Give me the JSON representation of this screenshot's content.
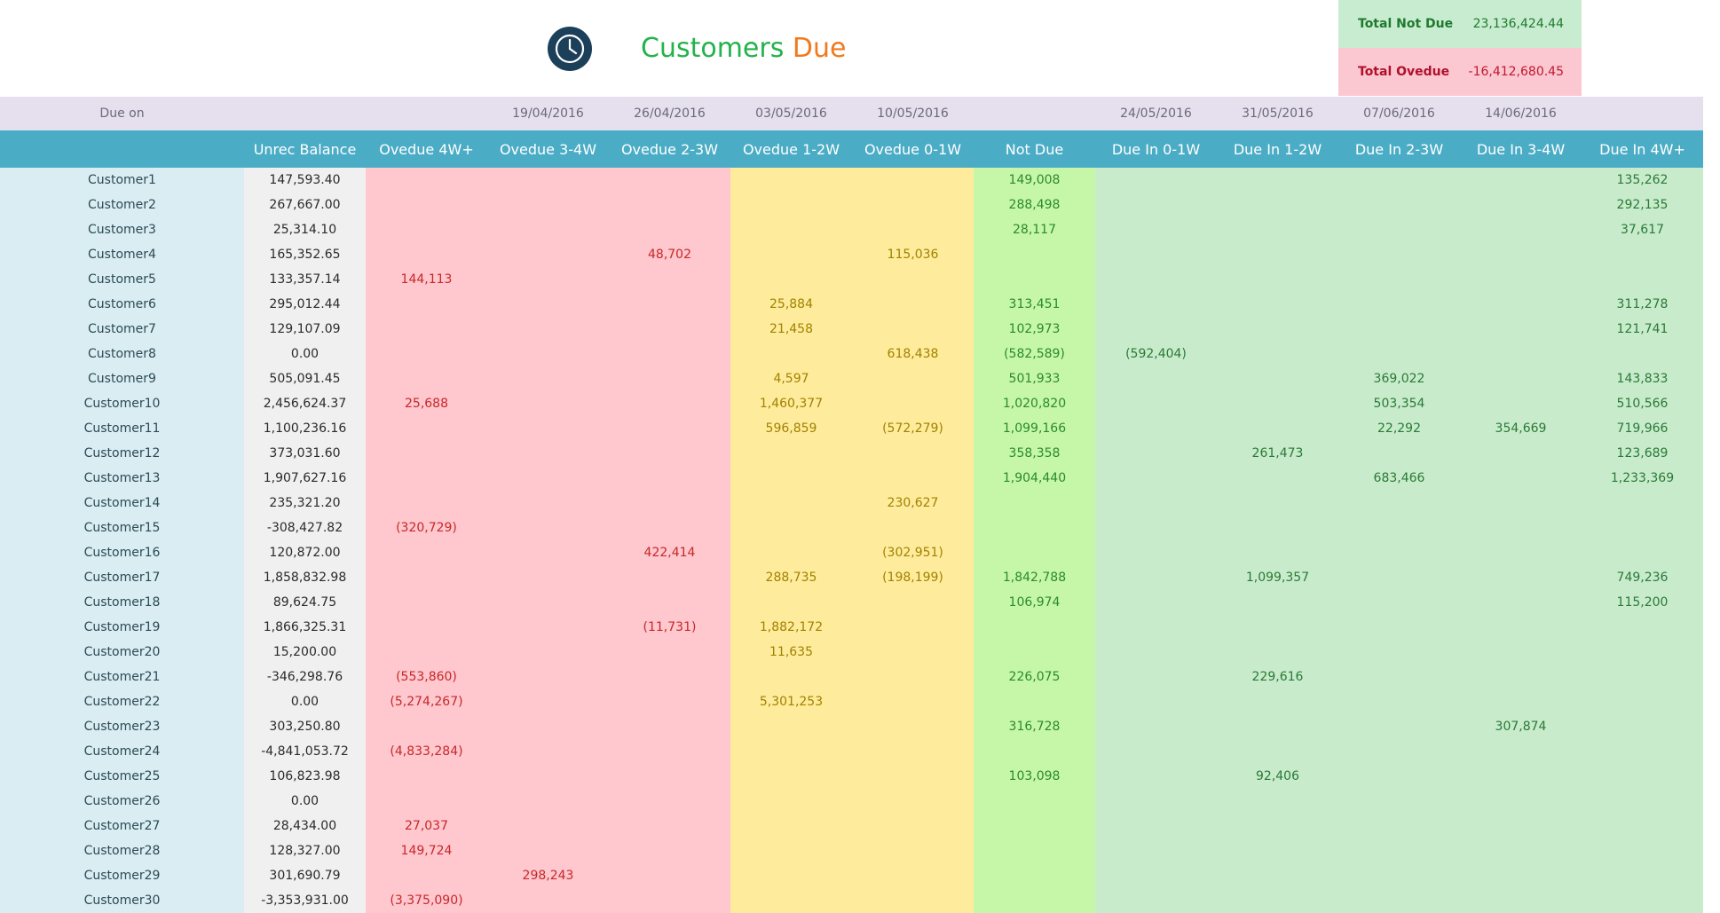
{
  "header": {
    "title_part1": "Customers",
    "title_part2": "Due",
    "icon": "clock-icon"
  },
  "totals": {
    "not_due_label": "Total Not Due",
    "not_due_value": "23,136,424.44",
    "overdue_label": "Total Ovedue",
    "overdue_value": "-16,412,680.45"
  },
  "colors": {
    "header_band": "#4bacc6",
    "overdue_pink": "#ffc7ce",
    "overdue_yellow": "#ffeb9c",
    "not_due_green": "#c6f7a8",
    "due_in_green": "#c8ebcc",
    "title_green": "#23b24b",
    "title_orange": "#f07a1e"
  },
  "table": {
    "dates": [
      "Due on",
      "",
      "",
      "19/04/2016",
      "26/04/2016",
      "03/05/2016",
      "10/05/2016",
      "",
      "24/05/2016",
      "31/05/2016",
      "07/06/2016",
      "14/06/2016",
      ""
    ],
    "columns": [
      "",
      "Unrec Balance",
      "Ovedue 4W+",
      "Ovedue 3-4W",
      "Ovedue 2-3W",
      "Ovedue 1-2W",
      "Ovedue 0-1W",
      "Not Due",
      "Due In 0-1W",
      "Due In 1-2W",
      "Due In 2-3W",
      "Due In 3-4W",
      "Due In 4W+"
    ],
    "rows": [
      [
        "Customer1",
        "147,593.40",
        "",
        "",
        "",
        "",
        "",
        "149,008",
        "",
        "",
        "",
        "",
        "135,262"
      ],
      [
        "Customer2",
        "267,667.00",
        "",
        "",
        "",
        "",
        "",
        "288,498",
        "",
        "",
        "",
        "",
        "292,135"
      ],
      [
        "Customer3",
        "25,314.10",
        "",
        "",
        "",
        "",
        "",
        "28,117",
        "",
        "",
        "",
        "",
        "37,617"
      ],
      [
        "Customer4",
        "165,352.65",
        "",
        "",
        "48,702",
        "",
        "115,036",
        "",
        "",
        "",
        "",
        "",
        ""
      ],
      [
        "Customer5",
        "133,357.14",
        "144,113",
        "",
        "",
        "",
        "",
        "",
        "",
        "",
        "",
        "",
        ""
      ],
      [
        "Customer6",
        "295,012.44",
        "",
        "",
        "",
        "25,884",
        "",
        "313,451",
        "",
        "",
        "",
        "",
        "311,278"
      ],
      [
        "Customer7",
        "129,107.09",
        "",
        "",
        "",
        "21,458",
        "",
        "102,973",
        "",
        "",
        "",
        "",
        "121,741"
      ],
      [
        "Customer8",
        "0.00",
        "",
        "",
        "",
        "",
        "618,438",
        "(582,589)",
        "(592,404)",
        "",
        "",
        "",
        ""
      ],
      [
        "Customer9",
        "505,091.45",
        "",
        "",
        "",
        "4,597",
        "",
        "501,933",
        "",
        "",
        "369,022",
        "",
        "143,833"
      ],
      [
        "Customer10",
        "2,456,624.37",
        "25,688",
        "",
        "",
        "1,460,377",
        "",
        "1,020,820",
        "",
        "",
        "503,354",
        "",
        "510,566"
      ],
      [
        "Customer11",
        "1,100,236.16",
        "",
        "",
        "",
        "596,859",
        "(572,279)",
        "1,099,166",
        "",
        "",
        "22,292",
        "354,669",
        "719,966"
      ],
      [
        "Customer12",
        "373,031.60",
        "",
        "",
        "",
        "",
        "",
        "358,358",
        "",
        "261,473",
        "",
        "",
        "123,689"
      ],
      [
        "Customer13",
        "1,907,627.16",
        "",
        "",
        "",
        "",
        "",
        "1,904,440",
        "",
        "",
        "683,466",
        "",
        "1,233,369"
      ],
      [
        "Customer14",
        "235,321.20",
        "",
        "",
        "",
        "",
        "230,627",
        "",
        "",
        "",
        "",
        "",
        ""
      ],
      [
        "Customer15",
        "-308,427.82",
        "(320,729)",
        "",
        "",
        "",
        "",
        "",
        "",
        "",
        "",
        "",
        ""
      ],
      [
        "Customer16",
        "120,872.00",
        "",
        "",
        "422,414",
        "",
        "(302,951)",
        "",
        "",
        "",
        "",
        "",
        ""
      ],
      [
        "Customer17",
        "1,858,832.98",
        "",
        "",
        "",
        "288,735",
        "(198,199)",
        "1,842,788",
        "",
        "1,099,357",
        "",
        "",
        "749,236"
      ],
      [
        "Customer18",
        "89,624.75",
        "",
        "",
        "",
        "",
        "",
        "106,974",
        "",
        "",
        "",
        "",
        "115,200"
      ],
      [
        "Customer19",
        "1,866,325.31",
        "",
        "",
        "(11,731)",
        "1,882,172",
        "",
        "",
        "",
        "",
        "",
        "",
        ""
      ],
      [
        "Customer20",
        "15,200.00",
        "",
        "",
        "",
        "11,635",
        "",
        "",
        "",
        "",
        "",
        "",
        ""
      ],
      [
        "Customer21",
        "-346,298.76",
        "(553,860)",
        "",
        "",
        "",
        "",
        "226,075",
        "",
        "229,616",
        "",
        "",
        ""
      ],
      [
        "Customer22",
        "0.00",
        "(5,274,267)",
        "",
        "",
        "5,301,253",
        "",
        "",
        "",
        "",
        "",
        "",
        ""
      ],
      [
        "Customer23",
        "303,250.80",
        "",
        "",
        "",
        "",
        "",
        "316,728",
        "",
        "",
        "",
        "307,874",
        ""
      ],
      [
        "Customer24",
        "-4,841,053.72",
        "(4,833,284)",
        "",
        "",
        "",
        "",
        "",
        "",
        "",
        "",
        "",
        ""
      ],
      [
        "Customer25",
        "106,823.98",
        "",
        "",
        "",
        "",
        "",
        "103,098",
        "",
        "92,406",
        "",
        "",
        ""
      ],
      [
        "Customer26",
        "0.00",
        "",
        "",
        "",
        "",
        "",
        "",
        "",
        "",
        "",
        "",
        ""
      ],
      [
        "Customer27",
        "28,434.00",
        "27,037",
        "",
        "",
        "",
        "",
        "",
        "",
        "",
        "",
        "",
        ""
      ],
      [
        "Customer28",
        "128,327.00",
        "149,724",
        "",
        "",
        "",
        "",
        "",
        "",
        "",
        "",
        "",
        ""
      ],
      [
        "Customer29",
        "301,690.79",
        "",
        "298,243",
        "",
        "",
        "",
        "",
        "",
        "",
        "",
        "",
        ""
      ],
      [
        "Customer30",
        "-3,353,931.00",
        "(3,375,090)",
        "",
        "",
        "",
        "",
        "",
        "",
        "",
        "",
        "",
        ""
      ]
    ]
  }
}
